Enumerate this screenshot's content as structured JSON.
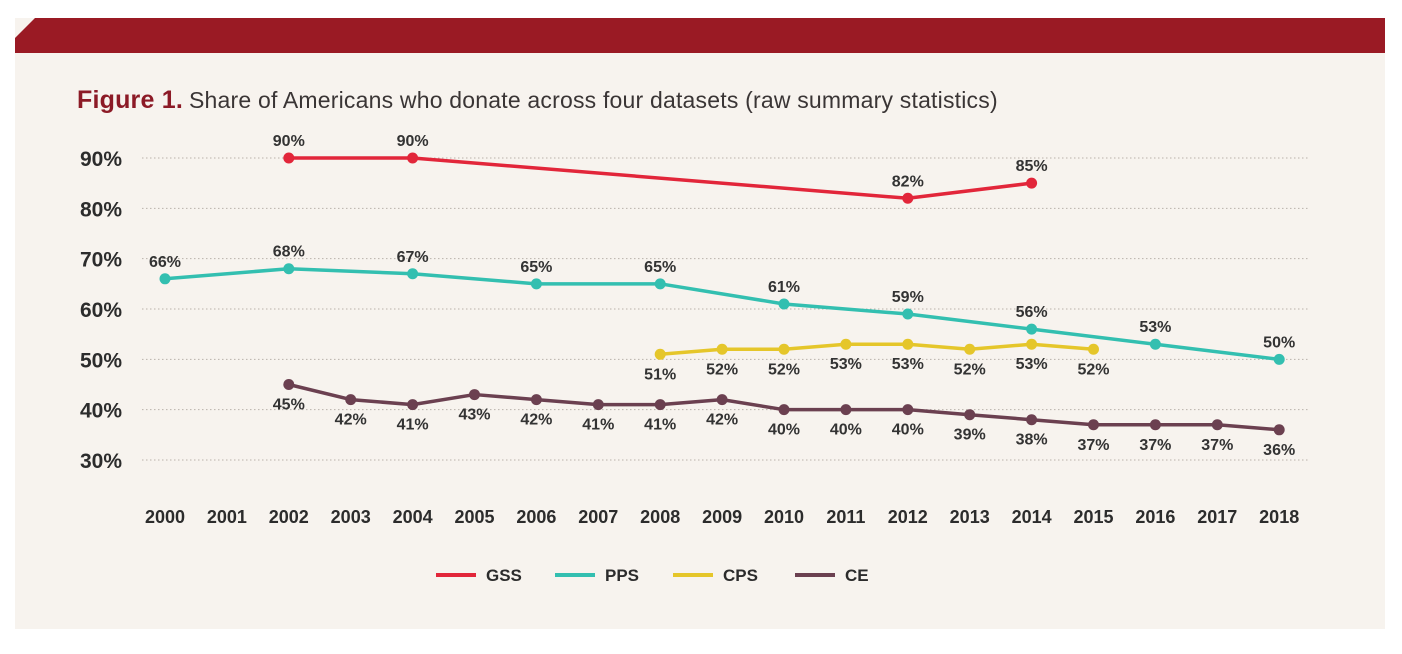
{
  "figure": {
    "label": "Figure 1.",
    "title": "Share of Americans who donate across four datasets (raw summary statistics)"
  },
  "colors": {
    "banner": "#9a1a24",
    "background": "#f7f3ee",
    "GSS": "#e2263a",
    "PPS": "#33bfb0",
    "CPS": "#e5c62a",
    "CE": "#6b4050"
  },
  "chart_data": {
    "type": "line",
    "title": "Share of Americans who donate across four datasets (raw summary statistics)",
    "xlabel": "",
    "ylabel": "",
    "ylim": [
      30,
      90
    ],
    "yticks": [
      90,
      80,
      70,
      60,
      50,
      40,
      30
    ],
    "ytick_labels": [
      "90%",
      "80%",
      "70%",
      "60%",
      "50%",
      "40%",
      "30%"
    ],
    "x": [
      "2000",
      "2001",
      "2002",
      "2003",
      "2004",
      "2005",
      "2006",
      "2007",
      "2008",
      "2009",
      "2010",
      "2011",
      "2012",
      "2013",
      "2014",
      "2015",
      "2016",
      "2017",
      "2018"
    ],
    "grid": "horizontal dotted",
    "legend_position": "bottom-center",
    "series": [
      {
        "name": "GSS",
        "color": "#e2263a",
        "points": [
          {
            "x": "2002",
            "y": 90,
            "label": "90%"
          },
          {
            "x": "2004",
            "y": 90,
            "label": "90%"
          },
          {
            "x": "2012",
            "y": 82,
            "label": "82%"
          },
          {
            "x": "2014",
            "y": 85,
            "label": "85%"
          }
        ]
      },
      {
        "name": "PPS",
        "color": "#33bfb0",
        "points": [
          {
            "x": "2000",
            "y": 66,
            "label": "66%"
          },
          {
            "x": "2002",
            "y": 68,
            "label": "68%"
          },
          {
            "x": "2004",
            "y": 67,
            "label": "67%"
          },
          {
            "x": "2006",
            "y": 65,
            "label": "65%"
          },
          {
            "x": "2008",
            "y": 65,
            "label": "65%"
          },
          {
            "x": "2010",
            "y": 61,
            "label": "61%"
          },
          {
            "x": "2012",
            "y": 59,
            "label": "59%"
          },
          {
            "x": "2014",
            "y": 56,
            "label": "56%"
          },
          {
            "x": "2016",
            "y": 53,
            "label": "53%"
          },
          {
            "x": "2018",
            "y": 50,
            "label": "50%"
          }
        ]
      },
      {
        "name": "CPS",
        "color": "#e5c62a",
        "points": [
          {
            "x": "2008",
            "y": 51,
            "label": "51%"
          },
          {
            "x": "2009",
            "y": 52,
            "label": "52%"
          },
          {
            "x": "2010",
            "y": 52,
            "label": "52%"
          },
          {
            "x": "2011",
            "y": 53,
            "label": "53%"
          },
          {
            "x": "2012",
            "y": 53,
            "label": "53%"
          },
          {
            "x": "2013",
            "y": 52,
            "label": "52%"
          },
          {
            "x": "2014",
            "y": 53,
            "label": "53%"
          },
          {
            "x": "2015",
            "y": 52,
            "label": "52%"
          }
        ]
      },
      {
        "name": "CE",
        "color": "#6b4050",
        "points": [
          {
            "x": "2002",
            "y": 45,
            "label": "45%"
          },
          {
            "x": "2003",
            "y": 42,
            "label": "42%"
          },
          {
            "x": "2004",
            "y": 41,
            "label": "41%"
          },
          {
            "x": "2005",
            "y": 43,
            "label": "43%"
          },
          {
            "x": "2006",
            "y": 42,
            "label": "42%"
          },
          {
            "x": "2007",
            "y": 41,
            "label": "41%"
          },
          {
            "x": "2008",
            "y": 41,
            "label": "41%"
          },
          {
            "x": "2009",
            "y": 42,
            "label": "42%"
          },
          {
            "x": "2010",
            "y": 40,
            "label": "40%"
          },
          {
            "x": "2011",
            "y": 40,
            "label": "40%"
          },
          {
            "x": "2012",
            "y": 40,
            "label": "40%"
          },
          {
            "x": "2013",
            "y": 39,
            "label": "39%"
          },
          {
            "x": "2014",
            "y": 38,
            "label": "38%"
          },
          {
            "x": "2015",
            "y": 37,
            "label": "37%"
          },
          {
            "x": "2016",
            "y": 37,
            "label": "37%"
          },
          {
            "x": "2017",
            "y": 37,
            "label": "37%"
          },
          {
            "x": "2018",
            "y": 36,
            "label": "36%"
          }
        ]
      }
    ],
    "legend": [
      "GSS",
      "PPS",
      "CPS",
      "CE"
    ]
  }
}
